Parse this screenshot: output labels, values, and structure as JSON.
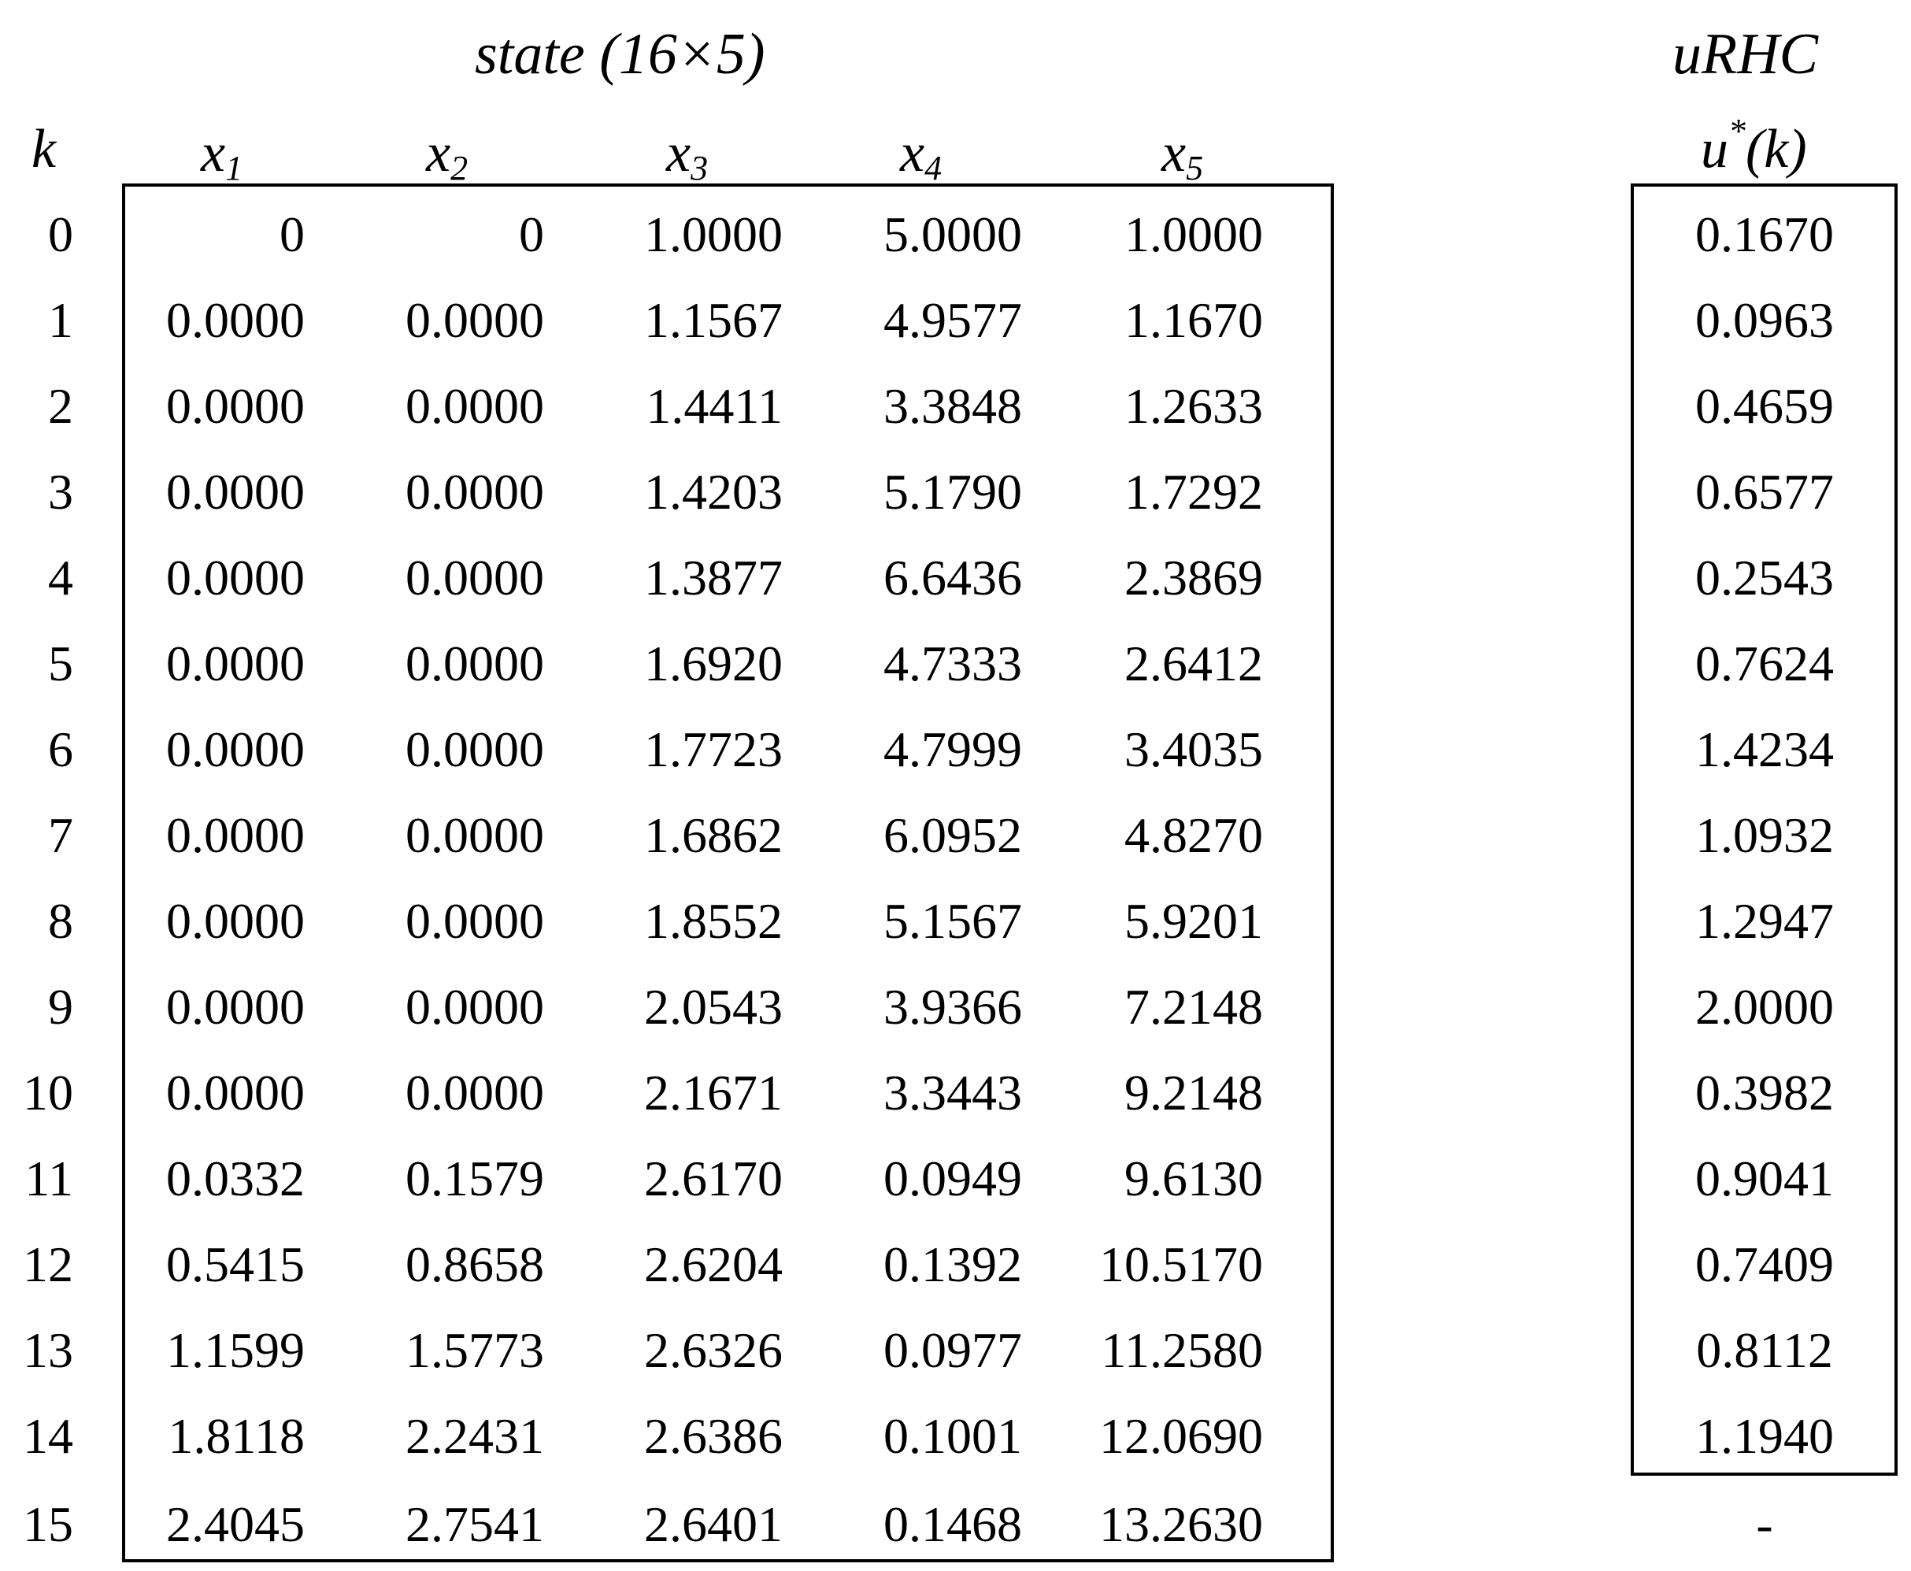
{
  "state_title": "state (16×5)",
  "control_title": "uRHC",
  "headers": {
    "k": "k",
    "x": [
      "x1",
      "x2",
      "x3",
      "x4",
      "x5"
    ],
    "u": "u*(k)"
  },
  "rows": [
    {
      "k": "0",
      "x": [
        "0",
        "0",
        "1.0000",
        "5.0000",
        "1.0000"
      ],
      "u": "0.1670"
    },
    {
      "k": "1",
      "x": [
        "0.0000",
        "0.0000",
        "1.1567",
        "4.9577",
        "1.1670"
      ],
      "u": "0.0963"
    },
    {
      "k": "2",
      "x": [
        "0.0000",
        "0.0000",
        "1.4411",
        "3.3848",
        "1.2633"
      ],
      "u": "0.4659"
    },
    {
      "k": "3",
      "x": [
        "0.0000",
        "0.0000",
        "1.4203",
        "5.1790",
        "1.7292"
      ],
      "u": "0.6577"
    },
    {
      "k": "4",
      "x": [
        "0.0000",
        "0.0000",
        "1.3877",
        "6.6436",
        "2.3869"
      ],
      "u": "0.2543"
    },
    {
      "k": "5",
      "x": [
        "0.0000",
        "0.0000",
        "1.6920",
        "4.7333",
        "2.6412"
      ],
      "u": "0.7624"
    },
    {
      "k": "6",
      "x": [
        "0.0000",
        "0.0000",
        "1.7723",
        "4.7999",
        "3.4035"
      ],
      "u": "1.4234"
    },
    {
      "k": "7",
      "x": [
        "0.0000",
        "0.0000",
        "1.6862",
        "6.0952",
        "4.8270"
      ],
      "u": "1.0932"
    },
    {
      "k": "8",
      "x": [
        "0.0000",
        "0.0000",
        "1.8552",
        "5.1567",
        "5.9201"
      ],
      "u": "1.2947"
    },
    {
      "k": "9",
      "x": [
        "0.0000",
        "0.0000",
        "2.0543",
        "3.9366",
        "7.2148"
      ],
      "u": "2.0000"
    },
    {
      "k": "10",
      "x": [
        "0.0000",
        "0.0000",
        "2.1671",
        "3.3443",
        "9.2148"
      ],
      "u": "0.3982"
    },
    {
      "k": "11",
      "x": [
        "0.0332",
        "0.1579",
        "2.6170",
        "0.0949",
        "9.6130"
      ],
      "u": "0.9041"
    },
    {
      "k": "12",
      "x": [
        "0.5415",
        "0.8658",
        "2.6204",
        "0.1392",
        "10.5170"
      ],
      "u": "0.7409"
    },
    {
      "k": "13",
      "x": [
        "1.1599",
        "1.5773",
        "2.6326",
        "0.0977",
        "11.2580"
      ],
      "u": "0.8112"
    },
    {
      "k": "14",
      "x": [
        "1.8118",
        "2.2431",
        "2.6386",
        "0.1001",
        "12.0690"
      ],
      "u": "1.1940"
    },
    {
      "k": "15",
      "x": [
        "2.4045",
        "2.7541",
        "2.6401",
        "0.1468",
        "13.2630"
      ],
      "u": "-"
    }
  ]
}
